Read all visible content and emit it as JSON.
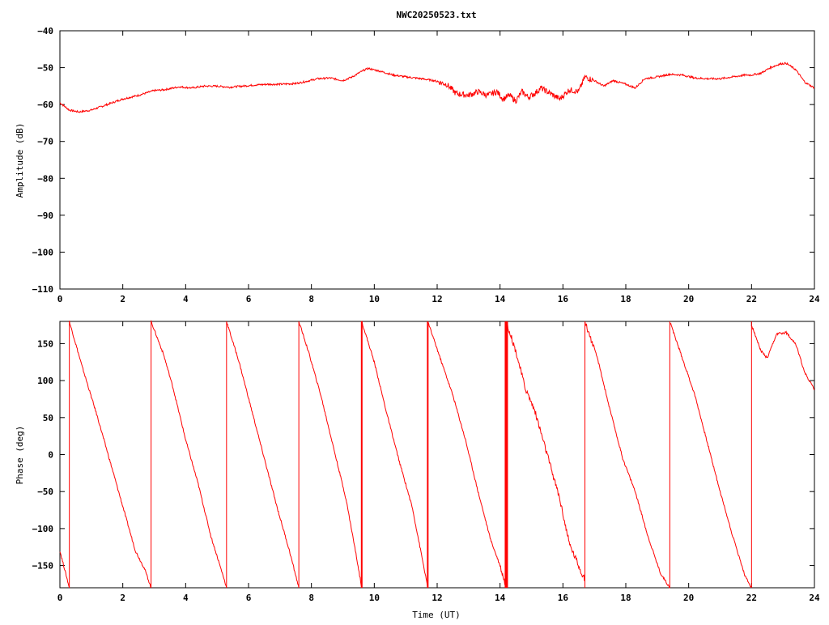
{
  "chart_data": [
    {
      "type": "line",
      "title": "NWC20250523.txt",
      "xlabel": "",
      "ylabel": "Amplitude (dB)",
      "xlim": [
        0,
        24
      ],
      "ylim": [
        -110,
        -40
      ],
      "xticks": [
        0,
        2,
        4,
        6,
        8,
        10,
        12,
        14,
        16,
        18,
        20,
        22,
        24
      ],
      "yticks": [
        -40,
        -50,
        -60,
        -70,
        -80,
        -90,
        -100,
        -110
      ],
      "ytick_labels": [
        "−40",
        "−50",
        "−60",
        "−70",
        "−80",
        "−90",
        "−100",
        "−110"
      ],
      "grid": false,
      "color": "#ff0000",
      "x": [
        0,
        0.3,
        0.6,
        1.0,
        1.5,
        2.0,
        2.5,
        3.0,
        3.3,
        3.8,
        4.2,
        4.6,
        5.0,
        5.4,
        5.8,
        6.2,
        6.6,
        7.0,
        7.5,
        7.8,
        8.2,
        8.6,
        9.0,
        9.3,
        9.6,
        9.8,
        10.2,
        10.6,
        11.0,
        11.5,
        11.9,
        12.3,
        12.6,
        13.0,
        13.3,
        13.6,
        13.9,
        14.1,
        14.3,
        14.5,
        14.7,
        14.9,
        15.1,
        15.3,
        15.6,
        15.9,
        16.2,
        16.5,
        16.7,
        17.0,
        17.3,
        17.6,
        18.0,
        18.3,
        18.6,
        19.0,
        19.4,
        19.8,
        20.2,
        20.6,
        21.0,
        21.4,
        21.8,
        22.0,
        22.3,
        22.6,
        22.9,
        23.1,
        23.4,
        23.7,
        24.0
      ],
      "y": [
        -59.5,
        -61.5,
        -62,
        -61.5,
        -60,
        -58.5,
        -57.5,
        -56.2,
        -56,
        -55.2,
        -55.5,
        -55,
        -55,
        -55.3,
        -55,
        -54.7,
        -54.5,
        -54.5,
        -54.3,
        -53.8,
        -53,
        -52.8,
        -53.5,
        -52.5,
        -51,
        -50.2,
        -51,
        -52,
        -52.5,
        -53,
        -53.5,
        -54.5,
        -57,
        -57.5,
        -56.5,
        -57.5,
        -56.5,
        -58.5,
        -57.5,
        -59,
        -56.5,
        -58,
        -57,
        -55.5,
        -57,
        -58.5,
        -56,
        -56.5,
        -52.5,
        -53.5,
        -55,
        -53.5,
        -54.5,
        -55.5,
        -53,
        -52.5,
        -51.8,
        -52,
        -52.8,
        -53,
        -53,
        -52.5,
        -52,
        -52,
        -51.5,
        -50,
        -49,
        -48.8,
        -50.5,
        -54,
        -55.5
      ]
    },
    {
      "type": "line",
      "title": "",
      "xlabel": "Time (UT)",
      "ylabel": "Phase (deg)",
      "xlim": [
        0,
        24
      ],
      "ylim": [
        -180,
        180
      ],
      "xticks": [
        0,
        2,
        4,
        6,
        8,
        10,
        12,
        14,
        16,
        18,
        20,
        22,
        24
      ],
      "yticks": [
        150,
        100,
        50,
        0,
        -50,
        -100,
        -150
      ],
      "ytick_labels": [
        "150",
        "100",
        "50",
        "0",
        "−50",
        "−100",
        "−150"
      ],
      "grid": false,
      "color": "#ff0000",
      "segments": [
        {
          "x": [
            0,
            0.3
          ],
          "y": [
            -130,
            -180
          ]
        },
        {
          "x": [
            0.3,
            0.7,
            1.2,
            1.6,
            2.0,
            2.4,
            2.7,
            2.9
          ],
          "y": [
            180,
            120,
            50,
            -10,
            -70,
            -130,
            -155,
            -180
          ]
        },
        {
          "x": [
            2.9,
            3.3,
            3.6,
            4.0,
            4.4,
            4.8,
            5.2,
            5.3
          ],
          "y": [
            180,
            135,
            90,
            20,
            -40,
            -110,
            -165,
            -180
          ]
        },
        {
          "x": [
            5.3,
            5.7,
            6.1,
            6.5,
            6.9,
            7.3,
            7.6
          ],
          "y": [
            180,
            125,
            60,
            -5,
            -70,
            -130,
            -180
          ]
        },
        {
          "x": [
            7.6,
            7.9,
            8.3,
            8.7,
            9.1,
            9.4,
            9.6
          ],
          "y": [
            180,
            140,
            80,
            10,
            -60,
            -130,
            -180
          ]
        },
        {
          "x": [
            9.6,
            10.0,
            10.4,
            10.8,
            11.2,
            11.5,
            11.7
          ],
          "y": [
            180,
            125,
            55,
            -10,
            -70,
            -135,
            -180
          ]
        },
        {
          "x": [
            11.7,
            12.1,
            12.5,
            12.9,
            13.3,
            13.7,
            14.0,
            14.2
          ],
          "y": [
            180,
            130,
            80,
            20,
            -50,
            -115,
            -150,
            -180
          ]
        },
        {
          "x": [
            14.2,
            14.5,
            14.8,
            15.1,
            15.5,
            15.9,
            16.2,
            16.5,
            16.7
          ],
          "y": [
            180,
            140,
            90,
            60,
            0,
            -60,
            -120,
            -150,
            -170
          ]
        },
        {
          "x": [
            16.7,
            17.1,
            17.5,
            17.9,
            18.3,
            18.7,
            19.1,
            19.4
          ],
          "y": [
            180,
            130,
            60,
            -5,
            -50,
            -110,
            -160,
            -180
          ]
        },
        {
          "x": [
            19.4,
            19.8,
            20.2,
            20.6,
            21.0,
            21.4,
            21.8,
            22.0
          ],
          "y": [
            180,
            130,
            80,
            15,
            -50,
            -110,
            -165,
            -180
          ]
        },
        {
          "x": [
            22.0,
            22.3,
            22.5,
            22.8,
            23.1,
            23.4,
            23.7,
            24.0
          ],
          "y": [
            175,
            140,
            130,
            163,
            165,
            150,
            110,
            88
          ]
        }
      ],
      "wrap_lines_x": [
        0.3,
        2.9,
        5.3,
        7.6,
        9.6,
        11.7,
        14.2,
        16.7,
        19.4,
        22.0
      ]
    }
  ]
}
